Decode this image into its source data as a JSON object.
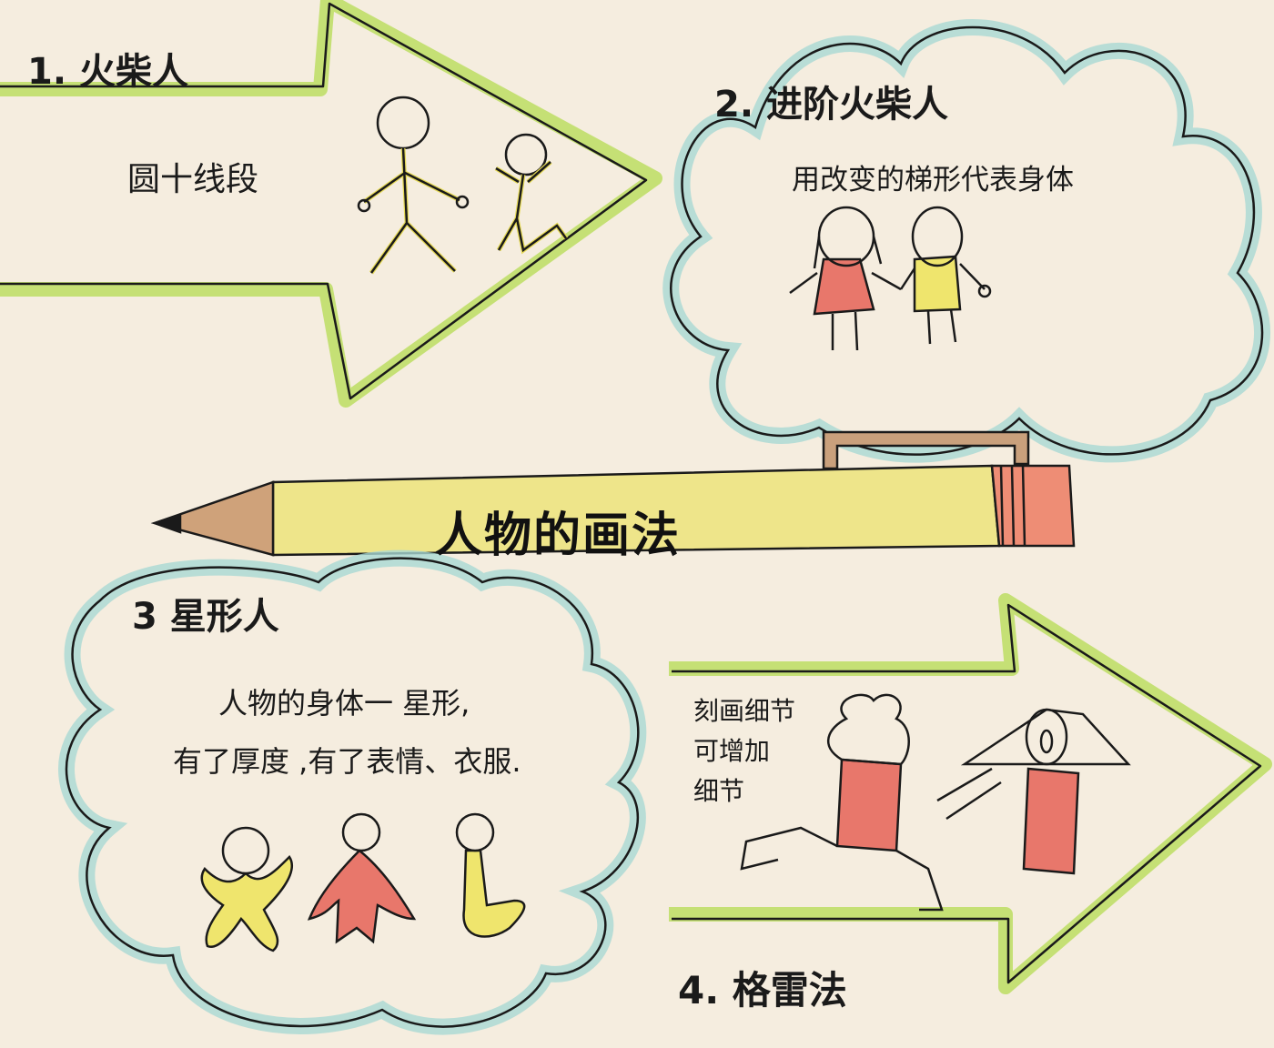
{
  "title": "人物的画法",
  "sections": [
    {
      "heading": "1. 火柴人",
      "text": "圆十线段"
    },
    {
      "heading": "2. 进阶火柴人",
      "text": "用改变的梯形代表身体"
    },
    {
      "heading": "3 星形人",
      "text": [
        "人物的身体一 星形,",
        "有了厚度 ,有了表情、衣服."
      ]
    },
    {
      "heading": "4. 格雷法",
      "text": [
        "刻画细节",
        "可增加",
        "细节"
      ]
    }
  ],
  "colors": {
    "paper": "#f5eddf",
    "green_outline": "#b9dc5a",
    "blue_outline": "#a9d8d3",
    "yellow": "#efe56d",
    "red": "#e8776b",
    "pencil_wood": "#caa07a",
    "eraser": "#ee8d75",
    "ink": "#1a1a1a"
  }
}
